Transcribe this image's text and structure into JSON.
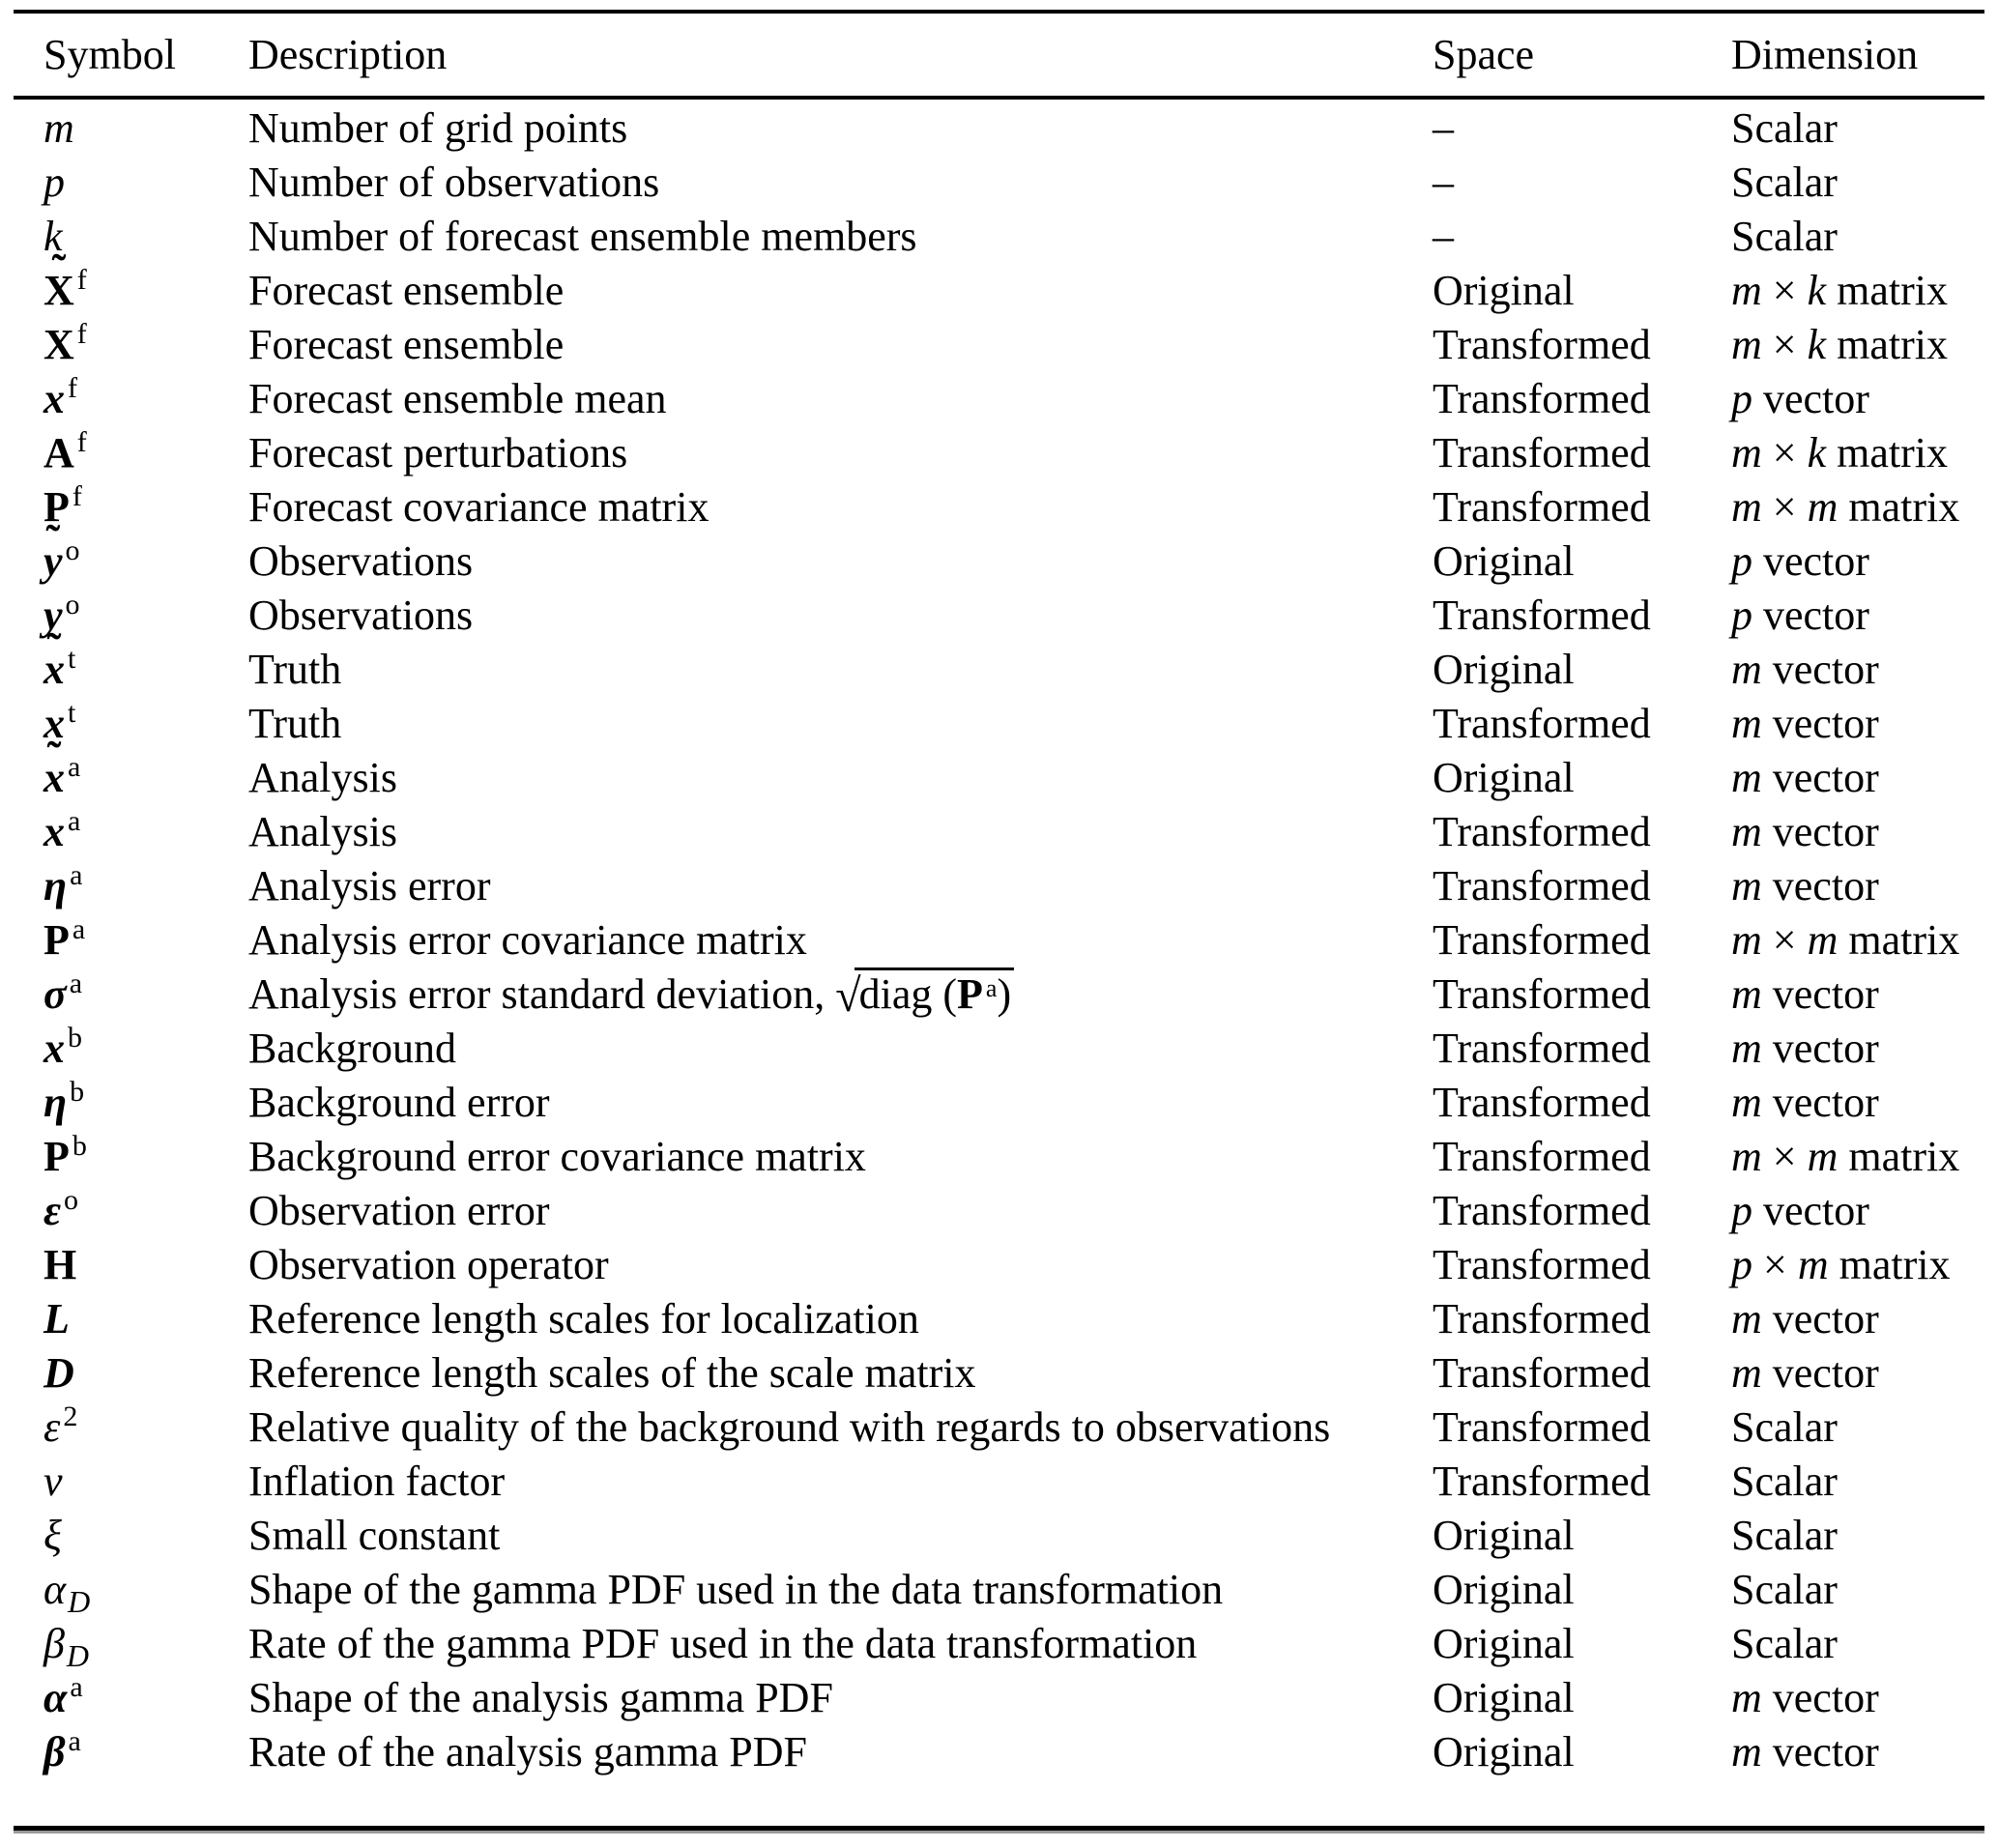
{
  "header": {
    "symbol": "Symbol",
    "description": "Description",
    "space": "Space",
    "dimension": "Dimension"
  },
  "rows": [
    {
      "sym": {
        "base": "m",
        "italic": true
      },
      "desc": "Number of grid points",
      "space": "–",
      "dim": "Scalar"
    },
    {
      "sym": {
        "base": "p",
        "italic": true
      },
      "desc": "Number of observations",
      "space": "–",
      "dim": "Scalar"
    },
    {
      "sym": {
        "base": "k",
        "italic": true
      },
      "desc": "Number of forecast ensemble members",
      "space": "–",
      "dim": "Scalar"
    },
    {
      "sym": {
        "base": "X",
        "bold": true,
        "tilde": "˜",
        "sup": "f"
      },
      "desc": "Forecast ensemble",
      "space": "Original",
      "dim": "m × k matrix"
    },
    {
      "sym": {
        "base": "X",
        "bold": true,
        "sup": "f"
      },
      "desc": "Forecast ensemble",
      "space": "Transformed",
      "dim": "m × k matrix"
    },
    {
      "sym": {
        "base": "x",
        "bold": true,
        "italic": true,
        "sup": "f"
      },
      "desc": "Forecast ensemble mean",
      "space": "Transformed",
      "dim": "p vector"
    },
    {
      "sym": {
        "base": "A",
        "bold": true,
        "sup": "f"
      },
      "desc": "Forecast perturbations",
      "space": "Transformed",
      "dim": "m × k matrix"
    },
    {
      "sym": {
        "base": "P",
        "bold": true,
        "sup": "f"
      },
      "desc": "Forecast covariance matrix",
      "space": "Transformed",
      "dim": "m × m matrix"
    },
    {
      "sym": {
        "base": "y",
        "bold": true,
        "italic": true,
        "tilde": "˜",
        "sup": "o"
      },
      "desc": "Observations",
      "space": "Original",
      "dim": "p vector"
    },
    {
      "sym": {
        "base": "y",
        "bold": true,
        "italic": true,
        "sup": "o"
      },
      "desc": "Observations",
      "space": "Transformed",
      "dim": "p vector"
    },
    {
      "sym": {
        "base": "x",
        "bold": true,
        "italic": true,
        "tilde": "˜",
        "sup": "t"
      },
      "desc": "Truth",
      "space": "Original",
      "dim": "m vector"
    },
    {
      "sym": {
        "base": "x",
        "bold": true,
        "italic": true,
        "sup": "t"
      },
      "desc": "Truth",
      "space": "Transformed",
      "dim": "m vector"
    },
    {
      "sym": {
        "base": "x",
        "bold": true,
        "italic": true,
        "tilde": "˜",
        "sup": "a"
      },
      "desc": "Analysis",
      "space": "Original",
      "dim": "m vector"
    },
    {
      "sym": {
        "base": "x",
        "bold": true,
        "italic": true,
        "sup": "a"
      },
      "desc": "Analysis",
      "space": "Transformed",
      "dim": "m vector"
    },
    {
      "sym": {
        "base": "η",
        "bold": true,
        "italic": true,
        "sup": "a"
      },
      "desc": "Analysis error",
      "space": "Transformed",
      "dim": "m vector"
    },
    {
      "sym": {
        "base": "P",
        "bold": true,
        "sup": "a"
      },
      "desc": "Analysis error covariance matrix",
      "space": "Transformed",
      "dim": "m × m matrix"
    },
    {
      "sym": {
        "base": "σ",
        "bold": true,
        "italic": true,
        "sup": "a"
      },
      "desc": "Analysis error standard deviation, ",
      "desc_math": {
        "sqrt": "√",
        "pre": "diag (",
        "matrix": "P",
        "matrix_sup": "a",
        "post": ")"
      },
      "space": "Transformed",
      "dim": "m vector"
    },
    {
      "sym": {
        "base": "x",
        "bold": true,
        "italic": true,
        "sup": "b"
      },
      "desc": "Background",
      "space": "Transformed",
      "dim": "m vector"
    },
    {
      "sym": {
        "base": "η",
        "bold": true,
        "italic": true,
        "sup": "b"
      },
      "desc": "Background error",
      "space": "Transformed",
      "dim": "m vector"
    },
    {
      "sym": {
        "base": "P",
        "bold": true,
        "sup": "b"
      },
      "desc": "Background error covariance matrix",
      "space": "Transformed",
      "dim": "m × m matrix"
    },
    {
      "sym": {
        "base": "ε",
        "bold": true,
        "italic": true,
        "sup": "o"
      },
      "desc": "Observation error",
      "space": "Transformed",
      "dim": "p vector"
    },
    {
      "sym": {
        "base": "H",
        "bold": true
      },
      "desc": "Observation operator",
      "space": "Transformed",
      "dim": "p × m matrix"
    },
    {
      "sym": {
        "base": "L",
        "bold": true,
        "italic": true
      },
      "desc": "Reference length scales for localization",
      "space": "Transformed",
      "dim": "m vector"
    },
    {
      "sym": {
        "base": "D",
        "bold": true,
        "italic": true
      },
      "desc": "Reference length scales of the scale matrix",
      "space": "Transformed",
      "dim": "m vector"
    },
    {
      "sym": {
        "base": "ε",
        "italic": true,
        "sup": "2"
      },
      "desc": "Relative quality of the background with regards to observations",
      "space": "Transformed",
      "dim": "Scalar"
    },
    {
      "sym": {
        "base": "ν",
        "italic": true
      },
      "desc": "Inflation factor",
      "space": "Transformed",
      "dim": "Scalar"
    },
    {
      "sym": {
        "base": "ξ",
        "italic": true
      },
      "desc": "Small constant",
      "space": "Original",
      "dim": "Scalar"
    },
    {
      "sym": {
        "base": "α",
        "italic": true,
        "sub": "D"
      },
      "desc": "Shape of the gamma PDF used in the data transformation",
      "space": "Original",
      "dim": "Scalar"
    },
    {
      "sym": {
        "base": "β",
        "italic": true,
        "sub": "D"
      },
      "desc": "Rate of the gamma PDF used in the data transformation",
      "space": "Original",
      "dim": "Scalar"
    },
    {
      "sym": {
        "base": "α",
        "bold": true,
        "italic": true,
        "sup": "a"
      },
      "desc": "Shape of the analysis gamma PDF",
      "space": "Original",
      "dim": "m vector"
    },
    {
      "sym": {
        "base": "β",
        "bold": true,
        "italic": true,
        "sup": "a"
      },
      "desc": "Rate of the analysis gamma PDF",
      "space": "Original",
      "dim": "m vector"
    }
  ]
}
